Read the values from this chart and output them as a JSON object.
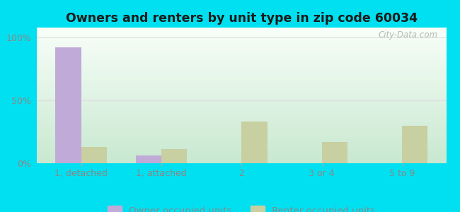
{
  "title": "Owners and renters by unit type in zip code 60034",
  "categories": [
    "1, detached",
    "1, attached",
    "2",
    "3 or 4",
    "5 to 9"
  ],
  "owner_values": [
    92,
    6,
    0,
    0,
    0
  ],
  "renter_values": [
    13,
    11,
    33,
    17,
    30
  ],
  "owner_color": "#c0aad8",
  "renter_color": "#c8cfa0",
  "background_outer": "#00e0f0",
  "background_inner_top": "#f8fef8",
  "background_inner_bottom": "#c8e8d0",
  "yticks": [
    0,
    50,
    100
  ],
  "ytick_labels": [
    "0%",
    "50%",
    "100%"
  ],
  "ylim": [
    0,
    108
  ],
  "bar_width": 0.32,
  "legend_labels": [
    "Owner occupied units",
    "Renter occupied units"
  ],
  "watermark": "City-Data.com",
  "title_fontsize": 12.5,
  "axis_fontsize": 9,
  "legend_fontsize": 9.5,
  "tick_color": "#888888",
  "grid_color": "#dddddd"
}
